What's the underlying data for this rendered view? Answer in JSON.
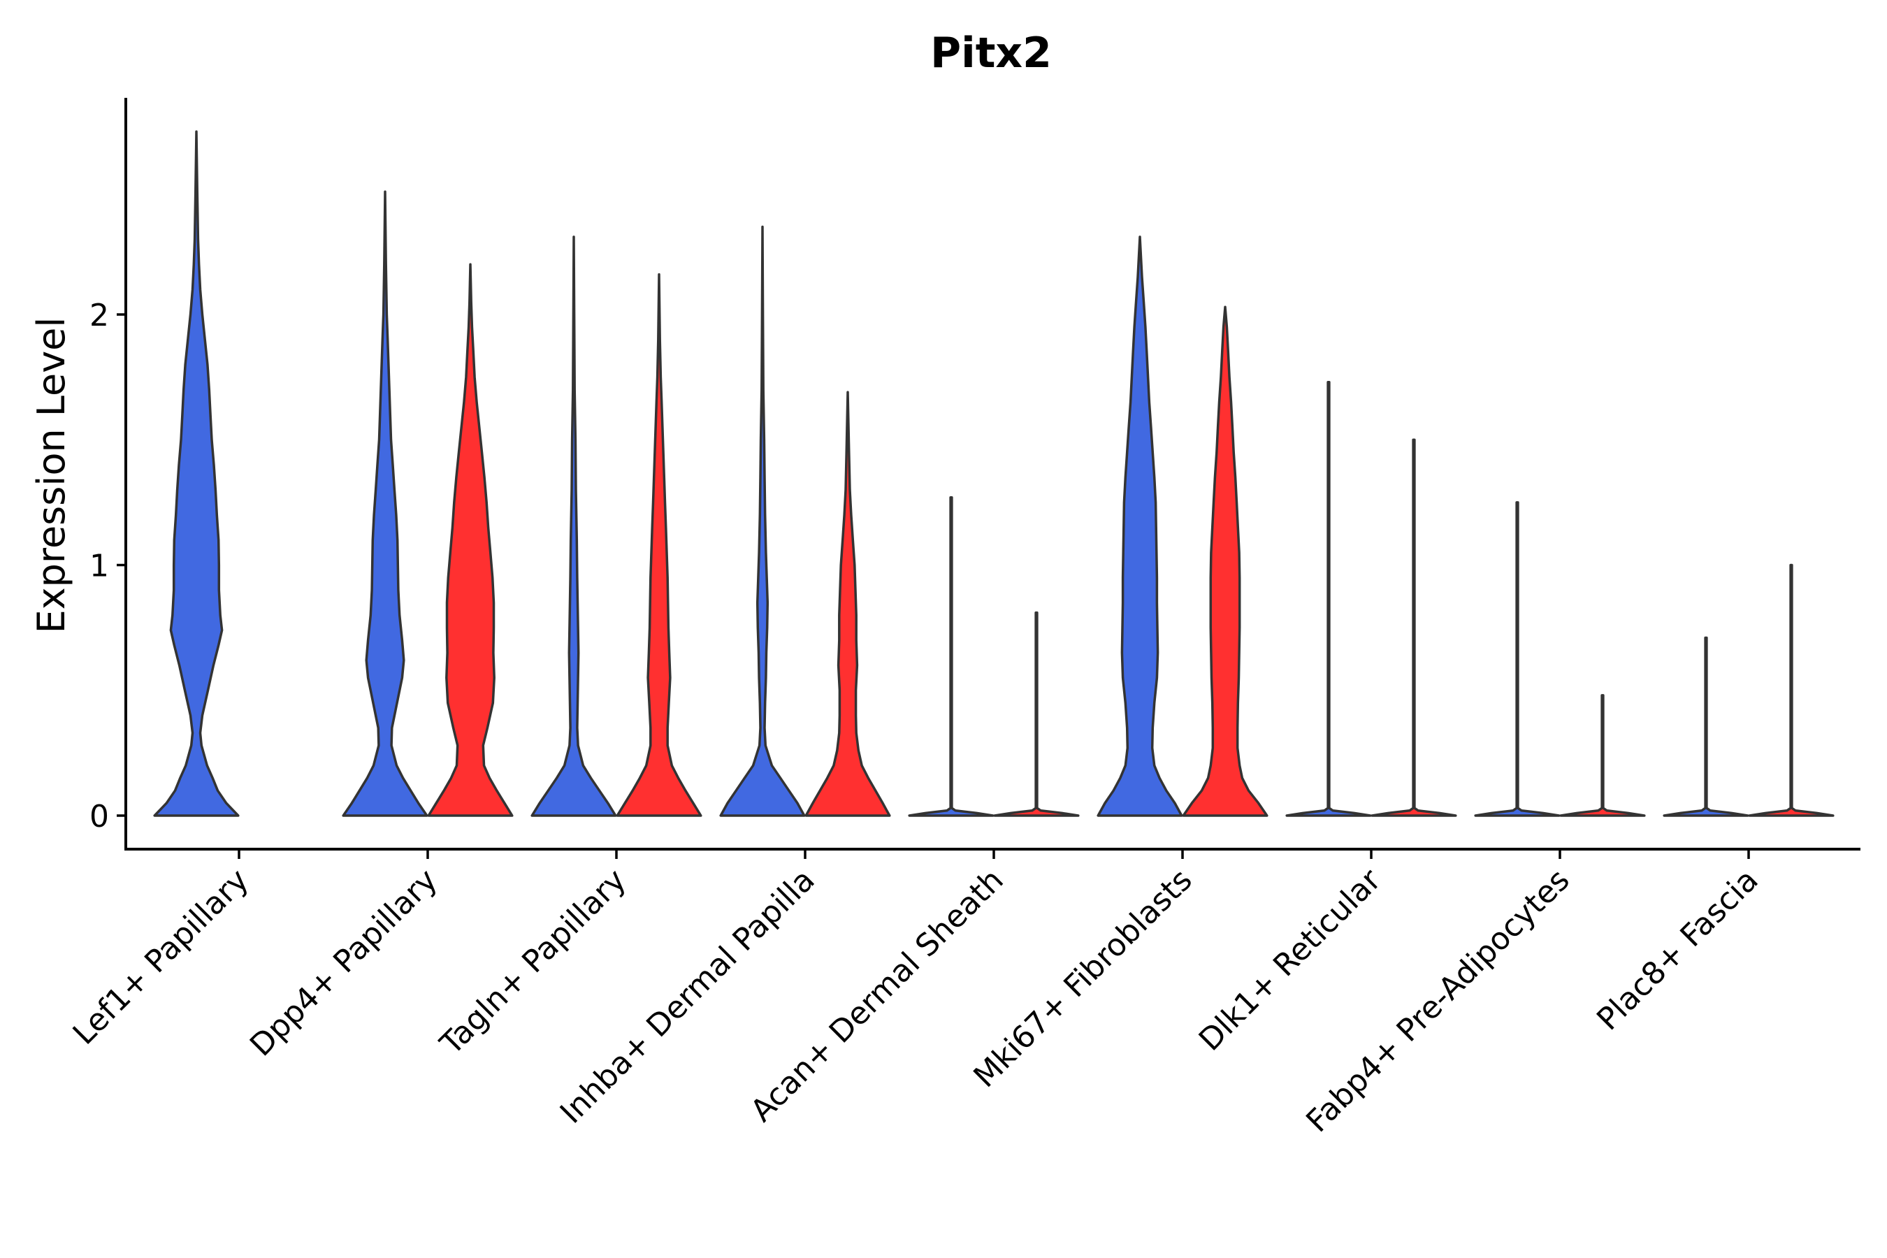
{
  "chart_data": {
    "type": "violin",
    "title": "Pitx2",
    "xlabel": "",
    "ylabel": "Expression Level",
    "ylim": [
      -0.14,
      2.86
    ],
    "yticks": [
      0,
      1,
      2
    ],
    "grid": false,
    "legend": "none",
    "series_colors": {
      "group1": "#4169E1",
      "group2": "#FF3030"
    },
    "categories": [
      "Lef1+ Papillary",
      "Dpp4+ Papillary",
      "Tagln+ Papillary",
      "Inhba+ Dermal Papilla",
      "Acan+ Dermal Sheath",
      "Mki67+ Fibroblasts",
      "Dlk1+ Reticular",
      "Fabp4+ Pre-Adipocytes",
      "Plac8+ Fascia"
    ],
    "violins": [
      {
        "category": "Lef1+ Papillary",
        "group": 1,
        "color": "#4169E1",
        "max": 2.73,
        "profile": [
          [
            0,
            0.98
          ],
          [
            0.05,
            0.7
          ],
          [
            0.1,
            0.5
          ],
          [
            0.15,
            0.38
          ],
          [
            0.2,
            0.25
          ],
          [
            0.28,
            0.12
          ],
          [
            0.33,
            0.09
          ],
          [
            0.4,
            0.14
          ],
          [
            0.5,
            0.27
          ],
          [
            0.6,
            0.4
          ],
          [
            0.68,
            0.52
          ],
          [
            0.74,
            0.6
          ],
          [
            0.8,
            0.56
          ],
          [
            0.9,
            0.53
          ],
          [
            1.0,
            0.53
          ],
          [
            1.1,
            0.52
          ],
          [
            1.2,
            0.48
          ],
          [
            1.3,
            0.45
          ],
          [
            1.4,
            0.41
          ],
          [
            1.5,
            0.36
          ],
          [
            1.6,
            0.33
          ],
          [
            1.7,
            0.3
          ],
          [
            1.8,
            0.26
          ],
          [
            1.9,
            0.2
          ],
          [
            2.0,
            0.14
          ],
          [
            2.1,
            0.09
          ],
          [
            2.2,
            0.06
          ],
          [
            2.3,
            0.04
          ],
          [
            2.5,
            0.02
          ],
          [
            2.73,
            0.0
          ]
        ]
      },
      {
        "category": "Dpp4+ Papillary",
        "group": 1,
        "color": "#4169E1",
        "max": 2.49,
        "profile": [
          [
            0,
            0.98
          ],
          [
            0.05,
            0.78
          ],
          [
            0.1,
            0.6
          ],
          [
            0.15,
            0.42
          ],
          [
            0.2,
            0.27
          ],
          [
            0.28,
            0.15
          ],
          [
            0.35,
            0.16
          ],
          [
            0.45,
            0.28
          ],
          [
            0.55,
            0.4
          ],
          [
            0.62,
            0.44
          ],
          [
            0.7,
            0.4
          ],
          [
            0.8,
            0.34
          ],
          [
            0.9,
            0.31
          ],
          [
            1.0,
            0.3
          ],
          [
            1.1,
            0.29
          ],
          [
            1.2,
            0.26
          ],
          [
            1.3,
            0.22
          ],
          [
            1.4,
            0.18
          ],
          [
            1.5,
            0.14
          ],
          [
            1.6,
            0.12
          ],
          [
            1.7,
            0.1
          ],
          [
            1.8,
            0.08
          ],
          [
            1.9,
            0.06
          ],
          [
            2.0,
            0.04
          ],
          [
            2.2,
            0.02
          ],
          [
            2.49,
            0.0
          ]
        ]
      },
      {
        "category": "Dpp4+ Papillary",
        "group": 2,
        "color": "#FF3030",
        "max": 2.2,
        "profile": [
          [
            0,
            0.98
          ],
          [
            0.05,
            0.8
          ],
          [
            0.1,
            0.62
          ],
          [
            0.15,
            0.45
          ],
          [
            0.2,
            0.32
          ],
          [
            0.28,
            0.3
          ],
          [
            0.35,
            0.4
          ],
          [
            0.45,
            0.53
          ],
          [
            0.55,
            0.56
          ],
          [
            0.65,
            0.54
          ],
          [
            0.75,
            0.55
          ],
          [
            0.85,
            0.55
          ],
          [
            0.95,
            0.52
          ],
          [
            1.05,
            0.47
          ],
          [
            1.15,
            0.42
          ],
          [
            1.25,
            0.38
          ],
          [
            1.35,
            0.33
          ],
          [
            1.45,
            0.27
          ],
          [
            1.55,
            0.21
          ],
          [
            1.65,
            0.15
          ],
          [
            1.75,
            0.1
          ],
          [
            1.85,
            0.07
          ],
          [
            1.95,
            0.04
          ],
          [
            2.05,
            0.02
          ],
          [
            2.2,
            0.0
          ]
        ]
      },
      {
        "category": "Tagln+ Papillary",
        "group": 1,
        "color": "#4169E1",
        "max": 2.31,
        "profile": [
          [
            0,
            0.98
          ],
          [
            0.05,
            0.8
          ],
          [
            0.1,
            0.6
          ],
          [
            0.15,
            0.4
          ],
          [
            0.2,
            0.22
          ],
          [
            0.28,
            0.1
          ],
          [
            0.35,
            0.08
          ],
          [
            0.45,
            0.09
          ],
          [
            0.55,
            0.1
          ],
          [
            0.65,
            0.11
          ],
          [
            0.75,
            0.1
          ],
          [
            0.85,
            0.09
          ],
          [
            0.95,
            0.08
          ],
          [
            1.1,
            0.07
          ],
          [
            1.3,
            0.05
          ],
          [
            1.5,
            0.04
          ],
          [
            1.7,
            0.02
          ],
          [
            2.0,
            0.01
          ],
          [
            2.31,
            0.0
          ]
        ]
      },
      {
        "category": "Tagln+ Papillary",
        "group": 2,
        "color": "#FF3030",
        "max": 2.16,
        "profile": [
          [
            0,
            0.98
          ],
          [
            0.05,
            0.8
          ],
          [
            0.1,
            0.62
          ],
          [
            0.15,
            0.45
          ],
          [
            0.2,
            0.3
          ],
          [
            0.28,
            0.2
          ],
          [
            0.35,
            0.2
          ],
          [
            0.45,
            0.23
          ],
          [
            0.55,
            0.26
          ],
          [
            0.65,
            0.24
          ],
          [
            0.75,
            0.22
          ],
          [
            0.85,
            0.21
          ],
          [
            0.95,
            0.2
          ],
          [
            1.05,
            0.18
          ],
          [
            1.15,
            0.16
          ],
          [
            1.25,
            0.14
          ],
          [
            1.35,
            0.12
          ],
          [
            1.45,
            0.1
          ],
          [
            1.55,
            0.08
          ],
          [
            1.65,
            0.06
          ],
          [
            1.75,
            0.04
          ],
          [
            1.9,
            0.02
          ],
          [
            2.16,
            0.0
          ]
        ]
      },
      {
        "category": "Inhba+ Dermal Papilla",
        "group": 1,
        "color": "#4169E1",
        "max": 2.35,
        "profile": [
          [
            0,
            0.98
          ],
          [
            0.05,
            0.82
          ],
          [
            0.1,
            0.62
          ],
          [
            0.15,
            0.42
          ],
          [
            0.2,
            0.22
          ],
          [
            0.28,
            0.07
          ],
          [
            0.35,
            0.05
          ],
          [
            0.45,
            0.06
          ],
          [
            0.55,
            0.08
          ],
          [
            0.65,
            0.09
          ],
          [
            0.75,
            0.11
          ],
          [
            0.85,
            0.12
          ],
          [
            0.95,
            0.1
          ],
          [
            1.05,
            0.08
          ],
          [
            1.2,
            0.06
          ],
          [
            1.35,
            0.05
          ],
          [
            1.5,
            0.04
          ],
          [
            1.7,
            0.02
          ],
          [
            2.0,
            0.01
          ],
          [
            2.35,
            0.0
          ]
        ]
      },
      {
        "category": "Inhba+ Dermal Papilla",
        "group": 2,
        "color": "#FF3030",
        "max": 1.69,
        "profile": [
          [
            0,
            0.98
          ],
          [
            0.05,
            0.82
          ],
          [
            0.1,
            0.65
          ],
          [
            0.15,
            0.48
          ],
          [
            0.2,
            0.33
          ],
          [
            0.26,
            0.25
          ],
          [
            0.33,
            0.2
          ],
          [
            0.4,
            0.19
          ],
          [
            0.5,
            0.19
          ],
          [
            0.6,
            0.22
          ],
          [
            0.7,
            0.2
          ],
          [
            0.8,
            0.2
          ],
          [
            0.9,
            0.18
          ],
          [
            1.0,
            0.16
          ],
          [
            1.1,
            0.12
          ],
          [
            1.2,
            0.08
          ],
          [
            1.3,
            0.05
          ],
          [
            1.45,
            0.03
          ],
          [
            1.69,
            0.0
          ]
        ]
      },
      {
        "category": "Acan+ Dermal Sheath",
        "group": 1,
        "color": "#4169E1",
        "max": 1.27,
        "profile": [
          [
            0,
            0.98
          ],
          [
            0.01,
            0.6
          ],
          [
            0.02,
            0.1
          ],
          [
            0.03,
            0.015
          ],
          [
            1.27,
            0.015
          ]
        ]
      },
      {
        "category": "Acan+ Dermal Sheath",
        "group": 2,
        "color": "#FF3030",
        "max": 0.81,
        "profile": [
          [
            0,
            0.98
          ],
          [
            0.01,
            0.6
          ],
          [
            0.02,
            0.1
          ],
          [
            0.03,
            0.015
          ],
          [
            0.81,
            0.015
          ]
        ]
      },
      {
        "category": "Mki67+ Fibroblasts",
        "group": 1,
        "color": "#4169E1",
        "max": 2.31,
        "profile": [
          [
            0,
            0.98
          ],
          [
            0.05,
            0.82
          ],
          [
            0.1,
            0.62
          ],
          [
            0.15,
            0.46
          ],
          [
            0.2,
            0.34
          ],
          [
            0.27,
            0.29
          ],
          [
            0.35,
            0.3
          ],
          [
            0.45,
            0.34
          ],
          [
            0.55,
            0.4
          ],
          [
            0.65,
            0.42
          ],
          [
            0.75,
            0.41
          ],
          [
            0.85,
            0.4
          ],
          [
            0.95,
            0.4
          ],
          [
            1.05,
            0.39
          ],
          [
            1.15,
            0.38
          ],
          [
            1.25,
            0.37
          ],
          [
            1.35,
            0.34
          ],
          [
            1.45,
            0.3
          ],
          [
            1.55,
            0.26
          ],
          [
            1.65,
            0.22
          ],
          [
            1.75,
            0.19
          ],
          [
            1.85,
            0.16
          ],
          [
            1.95,
            0.13
          ],
          [
            2.05,
            0.09
          ],
          [
            2.15,
            0.05
          ],
          [
            2.31,
            0.0
          ]
        ]
      },
      {
        "category": "Mki67+ Fibroblasts",
        "group": 2,
        "color": "#FF3030",
        "max": 2.03,
        "profile": [
          [
            0,
            0.98
          ],
          [
            0.05,
            0.78
          ],
          [
            0.1,
            0.55
          ],
          [
            0.15,
            0.4
          ],
          [
            0.2,
            0.34
          ],
          [
            0.27,
            0.29
          ],
          [
            0.35,
            0.29
          ],
          [
            0.45,
            0.3
          ],
          [
            0.55,
            0.32
          ],
          [
            0.65,
            0.33
          ],
          [
            0.75,
            0.34
          ],
          [
            0.85,
            0.34
          ],
          [
            0.95,
            0.34
          ],
          [
            1.05,
            0.33
          ],
          [
            1.15,
            0.3
          ],
          [
            1.25,
            0.27
          ],
          [
            1.35,
            0.24
          ],
          [
            1.45,
            0.2
          ],
          [
            1.55,
            0.17
          ],
          [
            1.65,
            0.14
          ],
          [
            1.75,
            0.1
          ],
          [
            1.85,
            0.07
          ],
          [
            1.95,
            0.04
          ],
          [
            2.03,
            0.0
          ]
        ]
      },
      {
        "category": "Dlk1+ Reticular",
        "group": 1,
        "color": "#4169E1",
        "max": 1.73,
        "profile": [
          [
            0,
            0.98
          ],
          [
            0.01,
            0.6
          ],
          [
            0.02,
            0.1
          ],
          [
            0.03,
            0.015
          ],
          [
            1.73,
            0.015
          ]
        ]
      },
      {
        "category": "Dlk1+ Reticular",
        "group": 2,
        "color": "#FF3030",
        "max": 1.5,
        "profile": [
          [
            0,
            0.98
          ],
          [
            0.01,
            0.6
          ],
          [
            0.02,
            0.1
          ],
          [
            0.03,
            0.015
          ],
          [
            1.5,
            0.015
          ]
        ]
      },
      {
        "category": "Fabp4+ Pre-Adipocytes",
        "group": 1,
        "color": "#4169E1",
        "max": 1.25,
        "profile": [
          [
            0,
            0.98
          ],
          [
            0.01,
            0.6
          ],
          [
            0.02,
            0.1
          ],
          [
            0.03,
            0.015
          ],
          [
            1.25,
            0.015
          ]
        ]
      },
      {
        "category": "Fabp4+ Pre-Adipocytes",
        "group": 2,
        "color": "#FF3030",
        "max": 0.48,
        "profile": [
          [
            0,
            0.98
          ],
          [
            0.01,
            0.6
          ],
          [
            0.02,
            0.1
          ],
          [
            0.03,
            0.015
          ],
          [
            0.48,
            0.015
          ]
        ]
      },
      {
        "category": "Plac8+ Fascia",
        "group": 1,
        "color": "#4169E1",
        "max": 0.71,
        "profile": [
          [
            0,
            0.98
          ],
          [
            0.01,
            0.6
          ],
          [
            0.02,
            0.1
          ],
          [
            0.03,
            0.015
          ],
          [
            0.71,
            0.015
          ]
        ]
      },
      {
        "category": "Plac8+ Fascia",
        "group": 2,
        "color": "#FF3030",
        "max": 1.0,
        "profile": [
          [
            0,
            0.98
          ],
          [
            0.01,
            0.6
          ],
          [
            0.02,
            0.1
          ],
          [
            0.03,
            0.015
          ],
          [
            1.0,
            0.015
          ]
        ]
      }
    ]
  }
}
